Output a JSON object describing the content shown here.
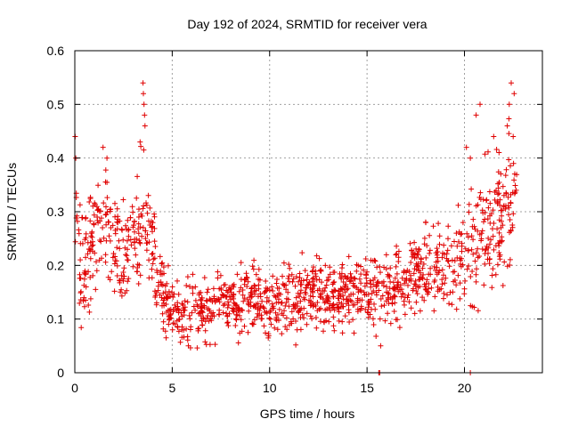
{
  "chart_data": {
    "type": "scatter",
    "title": "Day 192 of 2024, SRMTID for receiver vera",
    "xlabel": "GPS time / hours",
    "ylabel": "SRMTID / TECUs",
    "xlim": [
      0,
      24
    ],
    "ylim": [
      0,
      0.6
    ],
    "xticks": [
      0,
      5,
      10,
      15,
      20
    ],
    "xtick_labels": [
      "0",
      "5",
      "10",
      "15",
      "20"
    ],
    "yticks": [
      0,
      0.1,
      0.2,
      0.3,
      0.4,
      0.5,
      0.6
    ],
    "ytick_labels": [
      "0",
      "0.1",
      "0.2",
      "0.3",
      "0.4",
      "0.5",
      "0.6"
    ],
    "grid": true,
    "marker": "+",
    "color": "#e00000",
    "trend": [
      {
        "x": 0.0,
        "y": 0.24,
        "spread": 0.1
      },
      {
        "x": 0.5,
        "y": 0.2,
        "spread": 0.08
      },
      {
        "x": 1.0,
        "y": 0.24,
        "spread": 0.09
      },
      {
        "x": 1.5,
        "y": 0.3,
        "spread": 0.1
      },
      {
        "x": 2.0,
        "y": 0.24,
        "spread": 0.08
      },
      {
        "x": 2.5,
        "y": 0.22,
        "spread": 0.08
      },
      {
        "x": 3.0,
        "y": 0.24,
        "spread": 0.09
      },
      {
        "x": 3.5,
        "y": 0.3,
        "spread": 0.11
      },
      {
        "x": 4.0,
        "y": 0.22,
        "spread": 0.08
      },
      {
        "x": 4.5,
        "y": 0.15,
        "spread": 0.05
      },
      {
        "x": 5.0,
        "y": 0.11,
        "spread": 0.04
      },
      {
        "x": 6.0,
        "y": 0.12,
        "spread": 0.05
      },
      {
        "x": 7.0,
        "y": 0.12,
        "spread": 0.05
      },
      {
        "x": 8.0,
        "y": 0.13,
        "spread": 0.05
      },
      {
        "x": 9.0,
        "y": 0.14,
        "spread": 0.05
      },
      {
        "x": 10.0,
        "y": 0.13,
        "spread": 0.05
      },
      {
        "x": 11.0,
        "y": 0.13,
        "spread": 0.05
      },
      {
        "x": 12.0,
        "y": 0.15,
        "spread": 0.06
      },
      {
        "x": 13.0,
        "y": 0.14,
        "spread": 0.05
      },
      {
        "x": 14.0,
        "y": 0.15,
        "spread": 0.05
      },
      {
        "x": 15.0,
        "y": 0.15,
        "spread": 0.05
      },
      {
        "x": 16.0,
        "y": 0.15,
        "spread": 0.05
      },
      {
        "x": 17.0,
        "y": 0.17,
        "spread": 0.05
      },
      {
        "x": 18.0,
        "y": 0.2,
        "spread": 0.06
      },
      {
        "x": 19.0,
        "y": 0.2,
        "spread": 0.06
      },
      {
        "x": 20.0,
        "y": 0.22,
        "spread": 0.08
      },
      {
        "x": 21.0,
        "y": 0.26,
        "spread": 0.09
      },
      {
        "x": 22.0,
        "y": 0.3,
        "spread": 0.1
      },
      {
        "x": 22.7,
        "y": 0.32,
        "spread": 0.12
      }
    ],
    "outliers": [
      {
        "x": 0.02,
        "y": 0.44
      },
      {
        "x": 0.05,
        "y": 0.4
      },
      {
        "x": 1.45,
        "y": 0.42
      },
      {
        "x": 1.65,
        "y": 0.4
      },
      {
        "x": 3.5,
        "y": 0.54
      },
      {
        "x": 3.52,
        "y": 0.52
      },
      {
        "x": 3.55,
        "y": 0.5
      },
      {
        "x": 3.58,
        "y": 0.48
      },
      {
        "x": 3.6,
        "y": 0.46
      },
      {
        "x": 3.35,
        "y": 0.43
      },
      {
        "x": 15.7,
        "y": 0.05
      },
      {
        "x": 15.6,
        "y": 0.0
      },
      {
        "x": 15.65,
        "y": 0.0
      },
      {
        "x": 20.3,
        "y": 0.0
      },
      {
        "x": 20.1,
        "y": 0.42
      },
      {
        "x": 20.3,
        "y": 0.4
      },
      {
        "x": 20.6,
        "y": 0.48
      },
      {
        "x": 20.8,
        "y": 0.5
      },
      {
        "x": 21.5,
        "y": 0.44
      },
      {
        "x": 22.3,
        "y": 0.5
      },
      {
        "x": 22.4,
        "y": 0.54
      },
      {
        "x": 22.55,
        "y": 0.52
      },
      {
        "x": 22.2,
        "y": 0.46
      },
      {
        "x": 22.5,
        "y": 0.44
      }
    ]
  }
}
